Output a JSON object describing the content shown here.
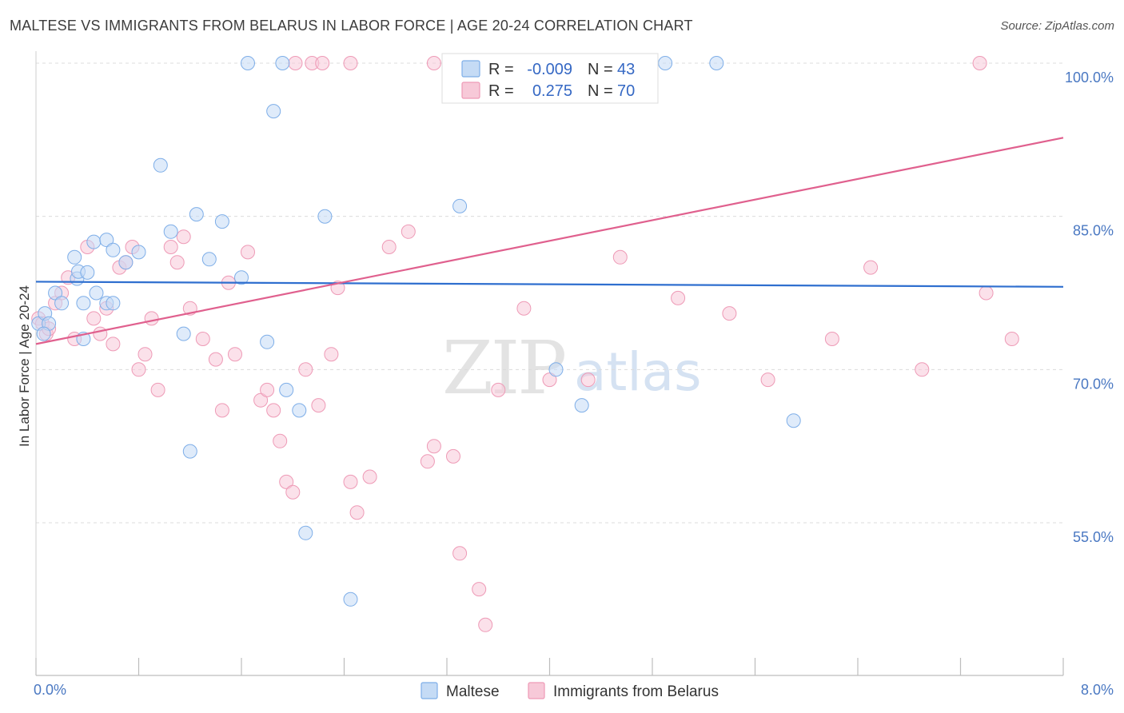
{
  "header": {
    "title": "MALTESE VS IMMIGRANTS FROM BELARUS IN LABOR FORCE | AGE 20-24 CORRELATION CHART",
    "source": "Source: ZipAtlas.com"
  },
  "watermark": {
    "zip": "ZIP",
    "atlas": "atlas"
  },
  "chart_data": {
    "type": "scatter",
    "title": "MALTESE VS IMMIGRANTS FROM BELARUS IN LABOR FORCE | AGE 20-24 CORRELATION CHART",
    "xlabel": "",
    "ylabel": "In Labor Force | Age 20-24",
    "xlim": [
      0.0,
      8.0
    ],
    "ylim": [
      38.0,
      102.0
    ],
    "x_tick_labels": [
      {
        "value": 0.0,
        "label": "0.0%"
      },
      {
        "value": 8.0,
        "label": "8.0%"
      }
    ],
    "y_ticks": [
      {
        "value": 100.0,
        "label": "100.0%"
      },
      {
        "value": 85.0,
        "label": "85.0%"
      },
      {
        "value": 70.0,
        "label": "70.0%"
      },
      {
        "value": 55.0,
        "label": "55.0%"
      }
    ],
    "grid": "horizontal dashed",
    "legend_position": "top-center",
    "series": [
      {
        "name": "Maltese",
        "color": "#7eaee8",
        "fill": "#c5dbf5",
        "line_color": "#2f6fcf",
        "R": "-0.009",
        "N": "43",
        "trend": {
          "x": [
            0.0,
            8.0
          ],
          "y": [
            78.6,
            78.1
          ]
        },
        "points": [
          [
            0.02,
            74.5
          ],
          [
            0.07,
            75.5
          ],
          [
            0.1,
            74.5
          ],
          [
            0.06,
            73.5
          ],
          [
            0.15,
            77.5
          ],
          [
            0.32,
            78.9
          ],
          [
            0.33,
            79.6
          ],
          [
            0.3,
            81.0
          ],
          [
            0.2,
            76.5
          ],
          [
            0.37,
            76.5
          ],
          [
            0.45,
            82.5
          ],
          [
            0.55,
            82.7
          ],
          [
            0.6,
            81.7
          ],
          [
            0.47,
            77.5
          ],
          [
            0.37,
            73.0
          ],
          [
            0.55,
            76.5
          ],
          [
            0.7,
            80.5
          ],
          [
            0.8,
            81.5
          ],
          [
            0.6,
            76.5
          ],
          [
            0.4,
            79.5
          ],
          [
            1.05,
            83.5
          ],
          [
            1.15,
            73.5
          ],
          [
            1.2,
            62.0
          ],
          [
            1.25,
            85.2
          ],
          [
            1.35,
            80.8
          ],
          [
            1.45,
            84.5
          ],
          [
            1.6,
            79.0
          ],
          [
            1.8,
            72.7
          ],
          [
            1.85,
            95.3
          ],
          [
            1.95,
            68.0
          ],
          [
            2.05,
            66.0
          ],
          [
            2.1,
            54.0
          ],
          [
            2.25,
            85.0
          ],
          [
            2.45,
            47.5
          ],
          [
            3.3,
            86.0
          ],
          [
            4.05,
            70.0
          ],
          [
            4.25,
            66.5
          ],
          [
            4.9,
            100.0
          ],
          [
            5.3,
            100.0
          ],
          [
            5.9,
            65.0
          ],
          [
            1.65,
            100.0
          ],
          [
            1.92,
            100.0
          ],
          [
            0.97,
            90.0
          ]
        ]
      },
      {
        "name": "Immigrants from Belarus",
        "color": "#ee9ab6",
        "fill": "#f7c9d8",
        "line_color": "#e0608e",
        "R": "0.275",
        "N": "70",
        "trend": {
          "x": [
            0.0,
            8.0
          ],
          "y": [
            72.5,
            92.7
          ]
        },
        "points": [
          [
            0.02,
            75.0
          ],
          [
            0.05,
            74.5
          ],
          [
            0.08,
            73.5
          ],
          [
            0.1,
            74.0
          ],
          [
            0.15,
            76.5
          ],
          [
            0.2,
            77.5
          ],
          [
            0.25,
            79.0
          ],
          [
            0.3,
            73.0
          ],
          [
            0.4,
            82.0
          ],
          [
            0.45,
            75.0
          ],
          [
            0.5,
            73.5
          ],
          [
            0.55,
            76.0
          ],
          [
            0.6,
            72.5
          ],
          [
            0.65,
            80.0
          ],
          [
            0.7,
            80.5
          ],
          [
            0.75,
            82.0
          ],
          [
            0.8,
            70.0
          ],
          [
            0.85,
            71.5
          ],
          [
            0.9,
            75.0
          ],
          [
            0.95,
            68.0
          ],
          [
            1.05,
            82.0
          ],
          [
            1.1,
            80.5
          ],
          [
            1.15,
            83.0
          ],
          [
            1.2,
            76.0
          ],
          [
            1.3,
            73.0
          ],
          [
            1.4,
            71.0
          ],
          [
            1.45,
            66.0
          ],
          [
            1.5,
            78.5
          ],
          [
            1.55,
            71.5
          ],
          [
            1.65,
            81.5
          ],
          [
            1.75,
            67.0
          ],
          [
            1.8,
            68.0
          ],
          [
            1.85,
            66.0
          ],
          [
            1.9,
            63.0
          ],
          [
            1.95,
            59.0
          ],
          [
            2.0,
            58.0
          ],
          [
            2.1,
            70.0
          ],
          [
            2.2,
            66.5
          ],
          [
            2.3,
            71.5
          ],
          [
            2.35,
            78.0
          ],
          [
            2.45,
            59.0
          ],
          [
            2.5,
            56.0
          ],
          [
            2.6,
            59.5
          ],
          [
            2.75,
            82.0
          ],
          [
            2.9,
            83.5
          ],
          [
            3.05,
            61.0
          ],
          [
            3.1,
            62.5
          ],
          [
            3.25,
            61.5
          ],
          [
            3.3,
            52.0
          ],
          [
            3.45,
            48.5
          ],
          [
            3.5,
            45.0
          ],
          [
            3.6,
            68.0
          ],
          [
            3.8,
            76.0
          ],
          [
            4.0,
            69.0
          ],
          [
            4.3,
            69.0
          ],
          [
            4.55,
            81.0
          ],
          [
            5.0,
            77.0
          ],
          [
            5.4,
            75.5
          ],
          [
            5.7,
            69.0
          ],
          [
            6.2,
            73.0
          ],
          [
            6.5,
            80.0
          ],
          [
            6.9,
            70.0
          ],
          [
            7.4,
            77.5
          ],
          [
            7.6,
            73.0
          ],
          [
            2.02,
            100.0
          ],
          [
            2.15,
            100.0
          ],
          [
            2.23,
            100.0
          ],
          [
            2.45,
            100.0
          ],
          [
            3.1,
            100.0
          ],
          [
            7.35,
            100.0
          ]
        ]
      }
    ]
  }
}
